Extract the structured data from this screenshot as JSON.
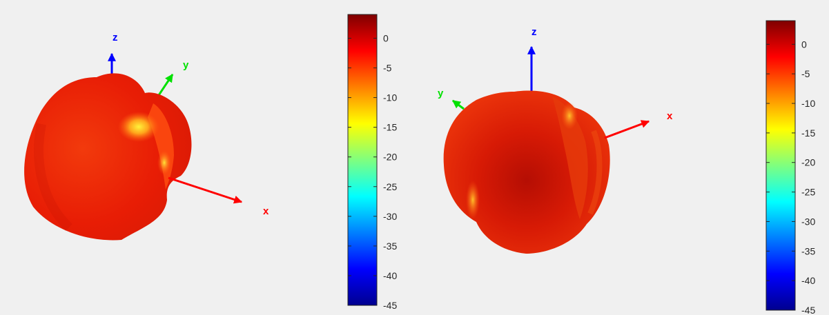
{
  "chart_data": [
    {
      "type": "3d-surface",
      "title": "",
      "axis_labels": {
        "x": "x",
        "y": "y",
        "z": "z"
      },
      "axis_colors": {
        "x": "#ff0000",
        "y": "#00e000",
        "z": "#0000ff"
      },
      "surface_color_description": "mostly red (~0 to -5), yellow highlight (~-15)",
      "colorbar": {
        "colormap": "jet",
        "range": [
          -45,
          4
        ],
        "ticks": [
          0,
          -5,
          -10,
          -15,
          -20,
          -25,
          -30,
          -35,
          -40,
          -45
        ],
        "tick_labels": [
          "0",
          "-5",
          "-10",
          "-15",
          "-20",
          "-25",
          "-30",
          "-35",
          "-40",
          "-45"
        ]
      }
    },
    {
      "type": "3d-surface",
      "title": "",
      "axis_labels": {
        "x": "x",
        "y": "y",
        "z": "z"
      },
      "axis_colors": {
        "x": "#ff0000",
        "y": "#00e000",
        "z": "#0000ff"
      },
      "surface_color_description": "mostly red / dark red (~0 to 4), orange-yellow highlights (~-8 to -12)",
      "colorbar": {
        "colormap": "jet",
        "range": [
          -45,
          4
        ],
        "ticks": [
          0,
          -5,
          -10,
          -15,
          -20,
          -25,
          -30,
          -35,
          -40,
          -45
        ],
        "tick_labels": [
          "0",
          "-5",
          "-10",
          "-15",
          "-20",
          "-25",
          "-30",
          "-35",
          "-40",
          "-45"
        ]
      }
    }
  ]
}
